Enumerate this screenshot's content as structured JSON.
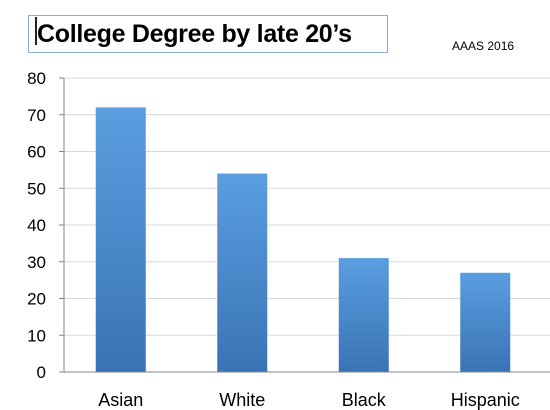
{
  "header": {
    "title": "College Degree by late 20’s",
    "source": "AAAS 2016"
  },
  "colors": {
    "bar_top": "#5a9ee0",
    "bar_bottom": "#3a73b5",
    "axis": "#868686",
    "grid": "#d9d9d9",
    "text": "#000000"
  },
  "chart_data": {
    "type": "bar",
    "title": "College Degree by late 20’s",
    "categories": [
      "Asian",
      "White",
      "Black",
      "Hispanic"
    ],
    "values": [
      72,
      54,
      31,
      27
    ],
    "ylim": [
      0,
      80
    ],
    "yticks": [
      0,
      10,
      20,
      30,
      40,
      50,
      60,
      70,
      80
    ],
    "grid": true,
    "legend": "none"
  }
}
